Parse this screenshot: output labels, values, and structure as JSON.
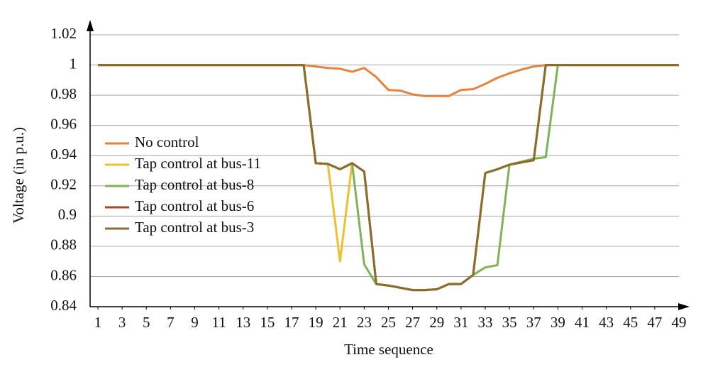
{
  "chart_data": {
    "type": "line",
    "x_label": "Time sequence",
    "y_label": "Voltage (in p.u.)",
    "x": [
      1,
      2,
      3,
      4,
      5,
      6,
      7,
      8,
      9,
      10,
      11,
      12,
      13,
      14,
      15,
      16,
      17,
      18,
      19,
      20,
      21,
      22,
      23,
      24,
      25,
      26,
      27,
      28,
      29,
      30,
      31,
      32,
      33,
      34,
      35,
      36,
      37,
      38,
      39,
      40,
      41,
      42,
      43,
      44,
      45,
      46,
      47,
      48,
      49
    ],
    "xlim": [
      1,
      49
    ],
    "xticks": [
      1,
      3,
      5,
      7,
      9,
      11,
      13,
      15,
      17,
      19,
      21,
      23,
      25,
      27,
      29,
      31,
      33,
      35,
      37,
      39,
      41,
      43,
      45,
      47,
      49
    ],
    "ylim": [
      0.84,
      1.02
    ],
    "yticks": [
      0.84,
      0.86,
      0.88,
      0.9,
      0.92,
      0.94,
      0.96,
      0.98,
      1,
      1.02
    ],
    "grid": true,
    "legend": "left",
    "series": [
      {
        "name": "No control",
        "color": "#e8823a",
        "values": [
          1,
          1,
          1,
          1,
          1,
          1,
          1,
          1,
          1,
          1,
          1,
          1,
          1,
          1,
          1,
          1,
          1,
          1,
          0.999,
          0.998,
          0.9975,
          0.9955,
          0.998,
          0.992,
          0.9835,
          0.983,
          0.9805,
          0.9795,
          0.9795,
          0.9795,
          0.9835,
          0.984,
          0.9875,
          0.9915,
          0.9945,
          0.997,
          0.999,
          1,
          1,
          1,
          1,
          1,
          1,
          1,
          1,
          1,
          1,
          1,
          1
        ]
      },
      {
        "name": "Tap control at bus-11",
        "color": "#f0be30",
        "values": [
          1,
          1,
          1,
          1,
          1,
          1,
          1,
          1,
          1,
          1,
          1,
          1,
          1,
          1,
          1,
          1,
          1,
          1,
          0.935,
          0.9345,
          0.87,
          0.935,
          0.9295,
          0.855,
          0.854,
          0.8525,
          0.851,
          0.851,
          0.8515,
          0.855,
          0.855,
          0.861,
          0.9285,
          0.931,
          0.934,
          0.9355,
          0.937,
          1,
          1,
          1,
          1,
          1,
          1,
          1,
          1,
          1,
          1,
          1,
          1
        ]
      },
      {
        "name": "Tap control at bus-8",
        "color": "#7eb356",
        "values": [
          1,
          1,
          1,
          1,
          1,
          1,
          1,
          1,
          1,
          1,
          1,
          1,
          1,
          1,
          1,
          1,
          1,
          1,
          0.935,
          0.9345,
          0.931,
          0.935,
          0.868,
          0.855,
          0.854,
          0.8525,
          0.851,
          0.851,
          0.8515,
          0.855,
          0.855,
          0.861,
          0.866,
          0.8675,
          0.934,
          0.936,
          0.938,
          0.939,
          1,
          1,
          1,
          1,
          1,
          1,
          1,
          1,
          1,
          1,
          1
        ]
      },
      {
        "name": "Tap control at bus-6",
        "color": "#9e4a2a",
        "values": [
          1,
          1,
          1,
          1,
          1,
          1,
          1,
          1,
          1,
          1,
          1,
          1,
          1,
          1,
          1,
          1,
          1,
          1,
          0.935,
          0.9345,
          0.931,
          0.935,
          0.9295,
          0.855,
          0.854,
          0.8525,
          0.851,
          0.851,
          0.8515,
          0.855,
          0.855,
          0.861,
          0.9285,
          0.931,
          0.934,
          0.9355,
          0.937,
          1,
          1,
          1,
          1,
          1,
          1,
          1,
          1,
          1,
          1,
          1,
          1
        ]
      },
      {
        "name": "Tap control at bus-3",
        "color": "#8b6d2e",
        "values": [
          1,
          1,
          1,
          1,
          1,
          1,
          1,
          1,
          1,
          1,
          1,
          1,
          1,
          1,
          1,
          1,
          1,
          1,
          0.935,
          0.9345,
          0.931,
          0.935,
          0.9295,
          0.855,
          0.854,
          0.8525,
          0.851,
          0.851,
          0.8515,
          0.855,
          0.855,
          0.861,
          0.9285,
          0.931,
          0.934,
          0.9355,
          0.937,
          1,
          1,
          1,
          1,
          1,
          1,
          1,
          1,
          1,
          1,
          1,
          1
        ]
      }
    ]
  }
}
